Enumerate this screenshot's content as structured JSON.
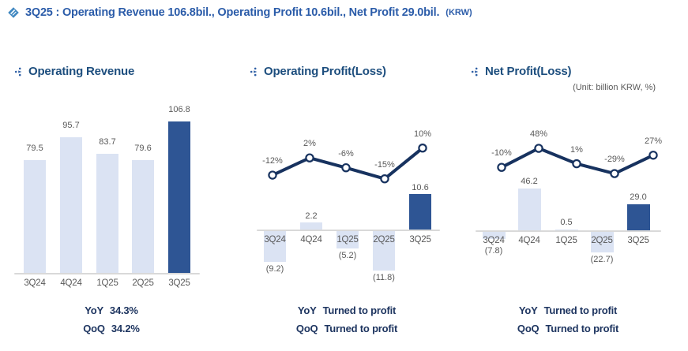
{
  "page_title": {
    "text": "3Q25 :  Operating Revenue 106.8bil., Operating Profit 10.6bil., Net Profit 29.0bil.",
    "suffix": "(KRW)"
  },
  "unit_note": "(Unit: billion KRW, %)",
  "colors": {
    "title_blue": "#2b5ca9",
    "heading_navy": "#1d4e7e",
    "bar_light": "#dbe3f3",
    "bar_dark": "#2e5594",
    "line_navy": "#17325f",
    "marker_fill": "#ffffff",
    "label_gray": "#595959",
    "axis_gray": "#d9d9d9",
    "caption_navy": "#1e3560"
  },
  "chart_data": [
    {
      "type": "bar",
      "title": "Operating Revenue",
      "ylabel": "billion KRW",
      "categories": [
        "3Q24",
        "4Q24",
        "1Q25",
        "2Q25",
        "3Q25"
      ],
      "bars": {
        "values": [
          79.5,
          95.7,
          83.7,
          79.6,
          106.8
        ],
        "labels": [
          "79.5",
          "95.7",
          "83.7",
          "79.6",
          "106.8"
        ],
        "highlight_index": 4
      },
      "captions": [
        {
          "label": "YoY",
          "value": "34.3%"
        },
        {
          "label": "QoQ",
          "value": "34.2%"
        }
      ]
    },
    {
      "type": "bar+line",
      "title": "Operating Profit(Loss)",
      "ylabel": "billion KRW",
      "categories": [
        "3Q24",
        "4Q24",
        "1Q25",
        "2Q25",
        "3Q25"
      ],
      "bars": {
        "values": [
          -9.2,
          2.2,
          -5.2,
          -11.8,
          10.6
        ],
        "labels": [
          "(9.2)",
          "2.2",
          "(5.2)",
          "(11.8)",
          "10.6"
        ],
        "highlight_index": 4
      },
      "line": {
        "name": "YoY growth %",
        "values": [
          -12,
          2,
          -6,
          -15,
          10
        ],
        "labels": [
          "-12%",
          "2%",
          "-6%",
          "-15%",
          "10%"
        ]
      },
      "captions": [
        {
          "label": "YoY",
          "value": "Turned to profit"
        },
        {
          "label": "QoQ",
          "value": "Turned to profit"
        }
      ]
    },
    {
      "type": "bar+line",
      "title": "Net Profit(Loss)",
      "ylabel": "billion KRW",
      "categories": [
        "3Q24",
        "4Q24",
        "1Q25",
        "2Q25",
        "3Q25"
      ],
      "bars": {
        "values": [
          -7.8,
          46.2,
          0.5,
          -22.7,
          29.0
        ],
        "labels": [
          "(7.8)",
          "46.2",
          "0.5",
          "(22.7)",
          "29.0"
        ],
        "highlight_index": 4
      },
      "line": {
        "name": "YoY growth %",
        "values": [
          -10,
          48,
          1,
          -29,
          27
        ],
        "labels": [
          "-10%",
          "48%",
          "1%",
          "-29%",
          "27%"
        ]
      },
      "captions": [
        {
          "label": "YoY",
          "value": "Turned to profit"
        },
        {
          "label": "QoQ",
          "value": "Turned to profit"
        }
      ]
    }
  ]
}
